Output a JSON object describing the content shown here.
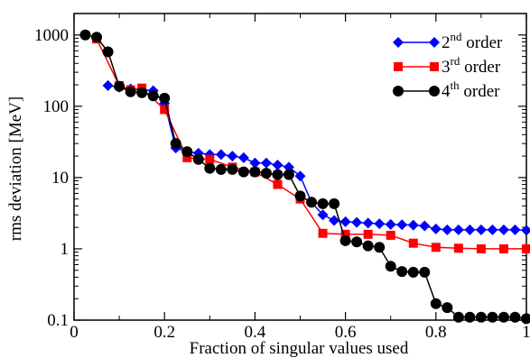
{
  "chart_data": {
    "type": "line",
    "title": "",
    "xlabel": "Fraction of singular values used",
    "ylabel": "rms deviation [MeV]",
    "xlim": [
      0,
      1
    ],
    "ylim": [
      0.1,
      2000
    ],
    "yscale": "log",
    "x_ticks": [
      0,
      0.2,
      0.4,
      0.6,
      0.8,
      1
    ],
    "x_tick_labels": [
      "0",
      "0.2",
      "0.4",
      "0.6",
      "0.8",
      "1"
    ],
    "y_ticks": [
      0.1,
      1,
      10,
      100,
      1000
    ],
    "y_tick_labels": [
      "0.1",
      "1",
      "10",
      "100",
      "1000"
    ],
    "grid": false,
    "legend_position": "top-right",
    "series": [
      {
        "name_base": "2",
        "name_sup": "nd",
        "name_tail": " order",
        "color": "#0000ff",
        "marker": "diamond",
        "x": [
          0.075,
          0.1,
          0.125,
          0.15,
          0.175,
          0.2,
          0.225,
          0.25,
          0.275,
          0.3,
          0.325,
          0.35,
          0.375,
          0.4,
          0.425,
          0.45,
          0.475,
          0.5,
          0.525,
          0.55,
          0.575,
          0.6,
          0.625,
          0.65,
          0.675,
          0.7,
          0.725,
          0.75,
          0.775,
          0.8,
          0.825,
          0.85,
          0.875,
          0.9,
          0.925,
          0.95,
          0.975,
          1.0
        ],
        "y": [
          195,
          185,
          175,
          170,
          165,
          110,
          26,
          23,
          22,
          21,
          21,
          20,
          19,
          16,
          16,
          15,
          14,
          10.5,
          4.5,
          3.0,
          2.5,
          2.4,
          2.35,
          2.3,
          2.25,
          2.2,
          2.18,
          2.15,
          2.1,
          1.9,
          1.85,
          1.85,
          1.85,
          1.85,
          1.85,
          1.85,
          1.85,
          1.82
        ]
      },
      {
        "name_base": "3",
        "name_sup": "rd",
        "name_tail": " order",
        "color": "#ff0000",
        "marker": "square",
        "x": [
          0.05,
          0.1,
          0.125,
          0.15,
          0.2,
          0.25,
          0.3,
          0.35,
          0.4,
          0.45,
          0.5,
          0.55,
          0.6,
          0.65,
          0.7,
          0.75,
          0.8,
          0.85,
          0.9,
          0.95,
          1.0
        ],
        "y": [
          880,
          195,
          170,
          180,
          90,
          19,
          18,
          14,
          12,
          8,
          5,
          1.65,
          1.6,
          1.6,
          1.55,
          1.2,
          1.05,
          1.02,
          1.0,
          1.0,
          1.0
        ]
      },
      {
        "name_base": "4",
        "name_sup": "th",
        "name_tail": " order",
        "color": "#000000",
        "marker": "circle",
        "x": [
          0.025,
          0.05,
          0.075,
          0.1,
          0.125,
          0.15,
          0.175,
          0.2,
          0.225,
          0.25,
          0.275,
          0.3,
          0.325,
          0.35,
          0.375,
          0.4,
          0.425,
          0.45,
          0.475,
          0.5,
          0.525,
          0.55,
          0.575,
          0.6,
          0.625,
          0.65,
          0.675,
          0.7,
          0.725,
          0.75,
          0.775,
          0.8,
          0.825,
          0.85,
          0.875,
          0.9,
          0.925,
          0.95,
          0.975,
          1.0
        ],
        "y": [
          1000,
          930,
          580,
          190,
          160,
          155,
          140,
          130,
          30,
          23,
          18,
          13.5,
          13,
          13,
          12,
          12,
          11.5,
          11,
          11,
          5.5,
          4.5,
          4.3,
          4.3,
          1.3,
          1.25,
          1.1,
          1.05,
          0.57,
          0.48,
          0.47,
          0.47,
          0.17,
          0.15,
          0.11,
          0.11,
          0.11,
          0.11,
          0.11,
          0.11,
          0.105
        ]
      }
    ]
  }
}
